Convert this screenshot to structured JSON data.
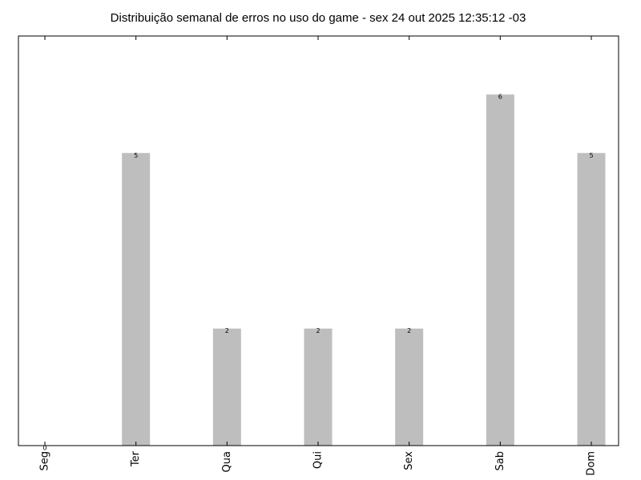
{
  "chart_data": {
    "type": "bar",
    "title": "Distribuição semanal de erros no uso do game - sex 24 out 2025 12:35:12 -03",
    "xlabel": "",
    "ylabel": "",
    "categories": [
      "Seg",
      "Ter",
      "Qua",
      "Qui",
      "Sex",
      "Sab",
      "Dom"
    ],
    "values": [
      0,
      5,
      2,
      2,
      2,
      6,
      5
    ],
    "data_labels": [
      "0",
      "5",
      "2",
      "2",
      "2",
      "6",
      "5"
    ],
    "ylim": [
      0,
      7
    ],
    "bar_color": "#bebebe",
    "grid": false,
    "legend": "none",
    "tick_label_rotation": "vertical"
  }
}
